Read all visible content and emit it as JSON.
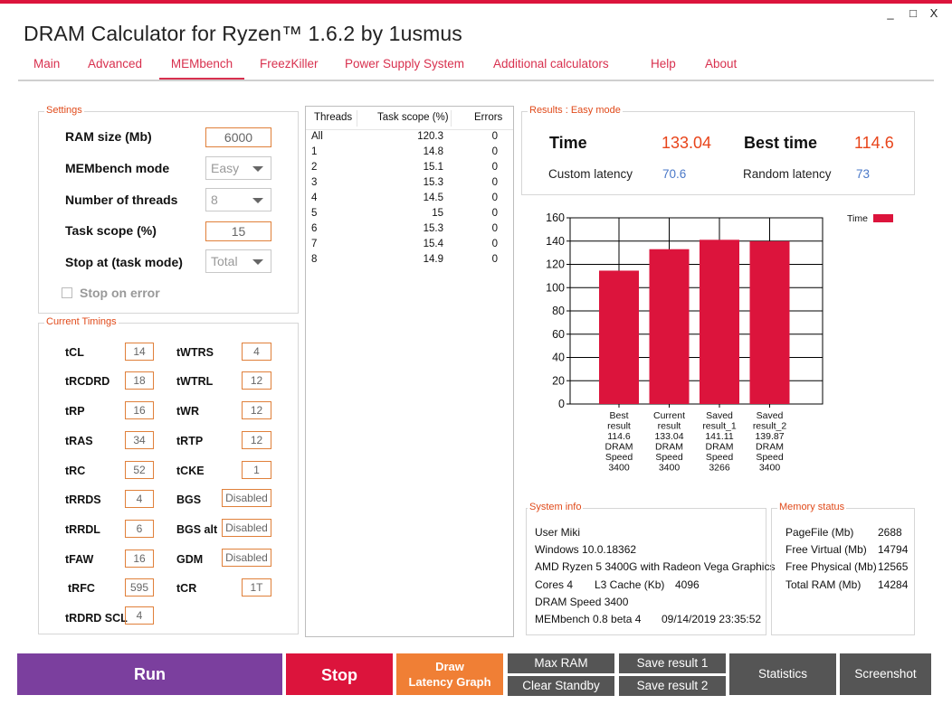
{
  "window": {
    "title": "DRAM Calculator for Ryzen™ 1.6.2 by 1usmus",
    "minimize": "_",
    "maximize": "□",
    "close": "X"
  },
  "tabs": [
    "Main",
    "Advanced",
    "MEMbench",
    "FreezKiller",
    "Power Supply System",
    "Additional calculators",
    "Help",
    "About"
  ],
  "active_tab": "MEMbench",
  "settings": {
    "legend": "Settings",
    "ram_size_label": "RAM size (Mb)",
    "ram_size_value": "6000",
    "mode_label": "MEMbench mode",
    "mode_value": "Easy",
    "threads_label": "Number of threads",
    "threads_value": "8",
    "task_scope_label": "Task scope (%)",
    "task_scope_value": "15",
    "stop_at_label": "Stop at (task mode)",
    "stop_at_value": "Total",
    "stop_on_error_label": "Stop on error"
  },
  "timings": {
    "legend": "Current Timings",
    "left": [
      {
        "label": "tCL",
        "value": "14"
      },
      {
        "label": "tRCDRD",
        "value": "18"
      },
      {
        "label": "tRP",
        "value": "16"
      },
      {
        "label": "tRAS",
        "value": "34"
      },
      {
        "label": "tRC",
        "value": "52"
      },
      {
        "label": "tRRDS",
        "value": "4"
      },
      {
        "label": "tRRDL",
        "value": "6"
      },
      {
        "label": "tFAW",
        "value": "16"
      },
      {
        "label": "tRFC",
        "value": "595"
      },
      {
        "label": "tRDRD SCL",
        "value": "4"
      }
    ],
    "right": [
      {
        "label": "tWTRS",
        "value": "4"
      },
      {
        "label": "tWTRL",
        "value": "12"
      },
      {
        "label": "tWR",
        "value": "12"
      },
      {
        "label": "tRTP",
        "value": "12"
      },
      {
        "label": "tCKE",
        "value": "1"
      },
      {
        "label": "BGS",
        "value": "Disabled"
      },
      {
        "label": "BGS alt",
        "value": "Disabled"
      },
      {
        "label": "GDM",
        "value": "Disabled"
      },
      {
        "label": "tCR",
        "value": "1T"
      }
    ]
  },
  "threads_table": {
    "headers": [
      "Threads",
      "Task scope (%)",
      "Errors"
    ],
    "rows": [
      [
        "All",
        "120.3",
        "0"
      ],
      [
        "1",
        "14.8",
        "0"
      ],
      [
        "2",
        "15.1",
        "0"
      ],
      [
        "3",
        "15.3",
        "0"
      ],
      [
        "4",
        "14.5",
        "0"
      ],
      [
        "5",
        "15",
        "0"
      ],
      [
        "6",
        "15.3",
        "0"
      ],
      [
        "7",
        "15.4",
        "0"
      ],
      [
        "8",
        "14.9",
        "0"
      ]
    ]
  },
  "results": {
    "legend": "Results : Easy mode",
    "time_label": "Time",
    "time_value": "133.04",
    "best_time_label": "Best time",
    "best_time_value": "114.6",
    "custom_latency_label": "Custom latency",
    "custom_latency_value": "70.6",
    "random_latency_label": "Random latency",
    "random_latency_value": "73"
  },
  "chart_data": {
    "type": "bar",
    "categories": [
      [
        "Best",
        "result",
        "114.6",
        "DRAM",
        "Speed",
        "3400"
      ],
      [
        "Current",
        "result",
        "133.04",
        "DRAM",
        "Speed",
        "3400"
      ],
      [
        "Saved",
        "result_1",
        "141.11",
        "DRAM",
        "Speed",
        "3266"
      ],
      [
        "Saved",
        "result_2",
        "139.87",
        "DRAM",
        "Speed",
        "3400"
      ]
    ],
    "series": [
      {
        "name": "Time",
        "values": [
          114.6,
          133.04,
          141.11,
          139.87
        ],
        "color": "#dc143c"
      }
    ],
    "y_ticks": [
      "0",
      "20",
      "40",
      "60",
      "80",
      "100",
      "120",
      "140",
      "160"
    ],
    "ylim": [
      0,
      160
    ],
    "grid": true,
    "legend_position": "top-right"
  },
  "system_info": {
    "legend": "System info",
    "user": "User Miki",
    "os": "Windows 10.0.18362",
    "cpu": "AMD Ryzen 5 3400G with Radeon Vega Graphics",
    "cores": "Cores 4",
    "l3_label": "L3 Cache (Kb)",
    "l3_value": "4096",
    "dram_speed": "DRAM Speed 3400",
    "membench_version": "MEMbench 0.8 beta 4",
    "datetime": "09/14/2019 23:35:52"
  },
  "memory_status": {
    "legend": "Memory status",
    "rows": [
      {
        "label": "PageFile (Mb)",
        "value": "2688"
      },
      {
        "label": "Free Virtual (Mb)",
        "value": "14794"
      },
      {
        "label": "Free Physical (Mb)",
        "value": "12565"
      },
      {
        "label": "Total RAM (Mb)",
        "value": "14284"
      }
    ]
  },
  "buttons": {
    "run": "Run",
    "stop": "Stop",
    "draw_line1": "Draw",
    "draw_line2": "Latency Graph",
    "max_ram": "Max RAM",
    "clear_standby": "Clear Standby",
    "save_result_1": "Save result 1",
    "save_result_2": "Save result 2",
    "statistics": "Statistics",
    "screenshot": "Screenshot"
  },
  "colors": {
    "accent": "#dc143c",
    "run": "#7b3f9e",
    "stop": "#dc143c",
    "draw": "#f07f35",
    "gray_button": "#555555"
  }
}
